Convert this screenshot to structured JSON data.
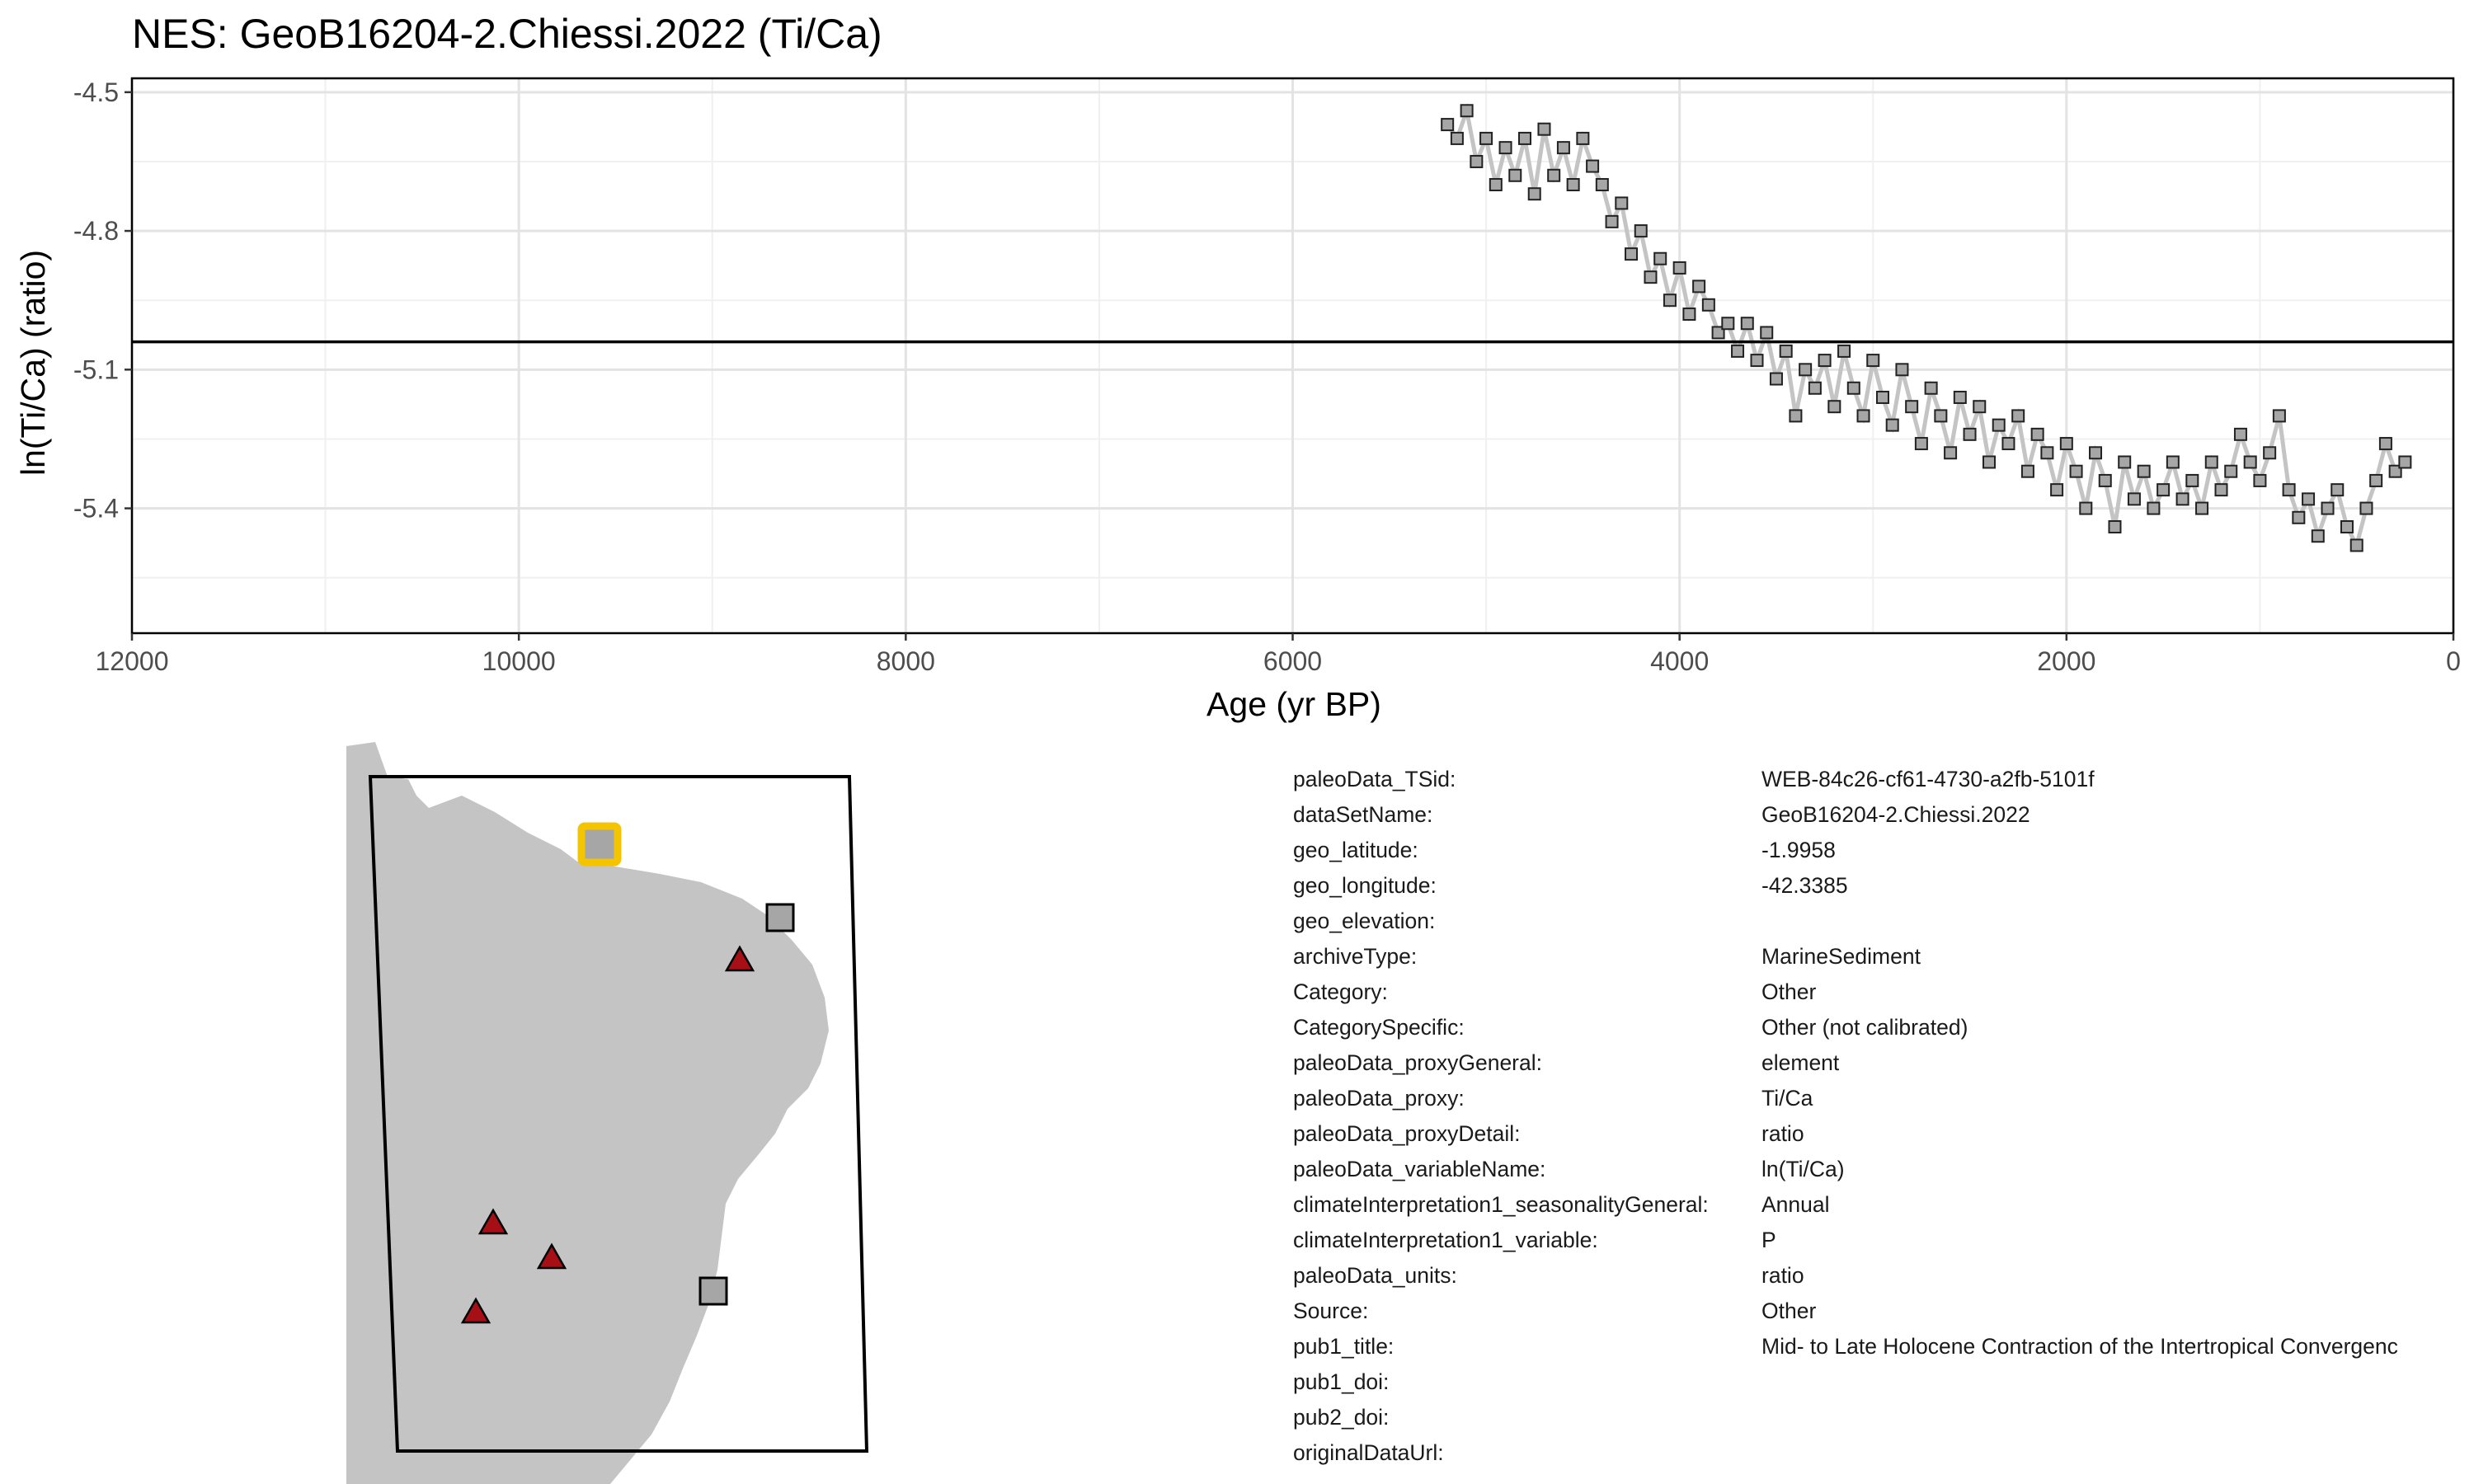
{
  "chart_data": {
    "type": "scatter",
    "title": "NES: GeoB16204-2.Chiessi.2022 (Ti/Ca)",
    "xlabel": "Age (yr BP)",
    "ylabel": "ln(Ti/Ca) (ratio)",
    "xlim": [
      12000,
      0
    ],
    "ylim": [
      -5.67,
      -4.47
    ],
    "x_reversed": true,
    "xticks": [
      "12000",
      "10000",
      "8000",
      "6000",
      "4000",
      "2000",
      "0"
    ],
    "yticks": [
      "-4.5",
      "-4.8",
      "-5.1",
      "-5.4"
    ],
    "reference_line_y": -5.04,
    "grid": true,
    "marker": "square",
    "marker_color": "#a6a6a6",
    "line_color": "#c4c4c4",
    "series": [
      {
        "x": [
          5200,
          5150,
          5100,
          5050,
          5000,
          4950,
          4900,
          4850,
          4800,
          4750,
          4700,
          4650,
          4600,
          4550,
          4500,
          4450,
          4400,
          4350,
          4300,
          4250,
          4200,
          4150,
          4100,
          4050,
          4000,
          3950,
          3900,
          3850,
          3800,
          3750,
          3700,
          3650,
          3600,
          3550,
          3500,
          3450,
          3400,
          3350,
          3300,
          3250,
          3200,
          3150,
          3100,
          3050,
          3000,
          2950,
          2900,
          2850,
          2800,
          2750,
          2700,
          2650,
          2600,
          2550,
          2500,
          2450,
          2400,
          2350,
          2300,
          2250,
          2200,
          2150,
          2100,
          2050,
          2000,
          1950,
          1900,
          1850,
          1800,
          1750,
          1700,
          1650,
          1600,
          1550,
          1500,
          1450,
          1400,
          1350,
          1300,
          1250,
          1200,
          1150,
          1100,
          1050,
          1000,
          950,
          900,
          850,
          800,
          750,
          700,
          650,
          600,
          550,
          500,
          450,
          400,
          350,
          300,
          250
        ],
        "y": [
          -4.57,
          -4.6,
          -4.54,
          -4.65,
          -4.6,
          -4.7,
          -4.62,
          -4.68,
          -4.6,
          -4.72,
          -4.58,
          -4.68,
          -4.62,
          -4.7,
          -4.6,
          -4.66,
          -4.7,
          -4.78,
          -4.74,
          -4.85,
          -4.8,
          -4.9,
          -4.86,
          -4.95,
          -4.88,
          -4.98,
          -4.92,
          -4.96,
          -5.02,
          -5.0,
          -5.06,
          -5.0,
          -5.08,
          -5.02,
          -5.12,
          -5.06,
          -5.2,
          -5.1,
          -5.14,
          -5.08,
          -5.18,
          -5.06,
          -5.14,
          -5.2,
          -5.08,
          -5.16,
          -5.22,
          -5.1,
          -5.18,
          -5.26,
          -5.14,
          -5.2,
          -5.28,
          -5.16,
          -5.24,
          -5.18,
          -5.3,
          -5.22,
          -5.26,
          -5.2,
          -5.32,
          -5.24,
          -5.28,
          -5.36,
          -5.26,
          -5.32,
          -5.4,
          -5.28,
          -5.34,
          -5.44,
          -5.3,
          -5.38,
          -5.32,
          -5.4,
          -5.36,
          -5.3,
          -5.38,
          -5.34,
          -5.4,
          -5.3,
          -5.36,
          -5.32,
          -5.24,
          -5.3,
          -5.34,
          -5.28,
          -5.2,
          -5.36,
          -5.42,
          -5.38,
          -5.46,
          -5.4,
          -5.36,
          -5.44,
          -5.48,
          -5.4,
          -5.34,
          -5.26,
          -5.32,
          -5.3
        ]
      }
    ]
  },
  "map": {
    "land_color": "#c4c4c4",
    "highlight_color": "#f5c400",
    "triangle_color": "#a50f15",
    "square_color": "#a6a6a6"
  },
  "metadata": [
    {
      "key": "paleoData_TSid:",
      "value": "WEB-84c26-cf61-4730-a2fb-5101f"
    },
    {
      "key": "dataSetName:",
      "value": "GeoB16204-2.Chiessi.2022"
    },
    {
      "key": "geo_latitude:",
      "value": "-1.9958"
    },
    {
      "key": "geo_longitude:",
      "value": "-42.3385"
    },
    {
      "key": "geo_elevation:",
      "value": ""
    },
    {
      "key": "archiveType:",
      "value": "MarineSediment"
    },
    {
      "key": "Category:",
      "value": "Other"
    },
    {
      "key": "CategorySpecific:",
      "value": "Other (not calibrated)"
    },
    {
      "key": "paleoData_proxyGeneral:",
      "value": "element"
    },
    {
      "key": "paleoData_proxy:",
      "value": "Ti/Ca"
    },
    {
      "key": "paleoData_proxyDetail:",
      "value": "ratio"
    },
    {
      "key": "paleoData_variableName:",
      "value": "ln(Ti/Ca)"
    },
    {
      "key": "climateInterpretation1_seasonalityGeneral:",
      "value": "Annual"
    },
    {
      "key": "climateInterpretation1_variable:",
      "value": "P"
    },
    {
      "key": "paleoData_units:",
      "value": "ratio"
    },
    {
      "key": "Source:",
      "value": "Other"
    },
    {
      "key": "pub1_title:",
      "value": "Mid- to Late Holocene Contraction of the Intertropical Convergenc"
    },
    {
      "key": "pub1_doi:",
      "value": ""
    },
    {
      "key": "pub2_doi:",
      "value": ""
    },
    {
      "key": "originalDataUrl:",
      "value": ""
    }
  ]
}
